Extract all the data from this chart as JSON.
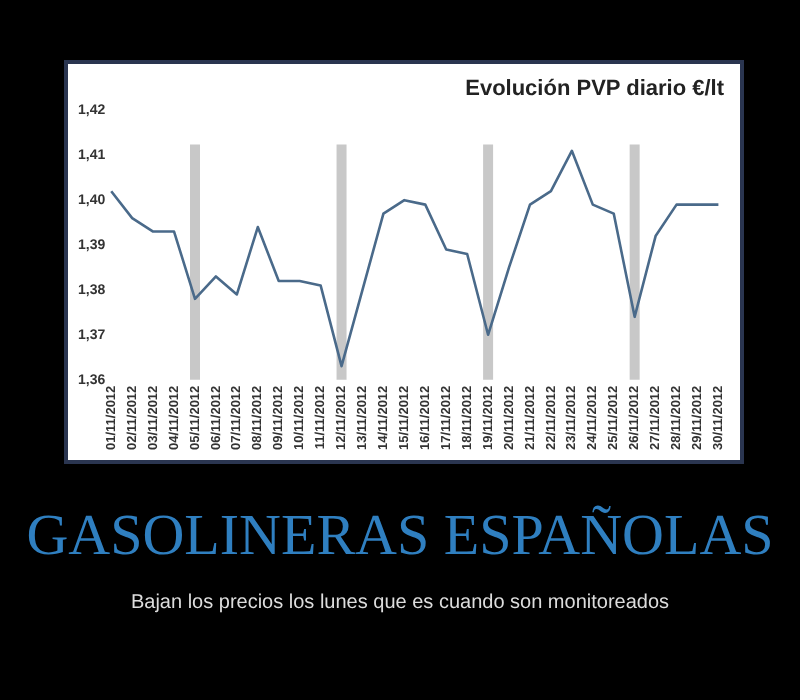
{
  "chart_data": {
    "type": "line",
    "title": "Evolución PVP diario €/lt",
    "categories": [
      "01/11/2012",
      "02/11/2012",
      "03/11/2012",
      "04/11/2012",
      "05/11/2012",
      "06/11/2012",
      "07/11/2012",
      "08/11/2012",
      "09/11/2012",
      "10/11/2012",
      "11/11/2012",
      "12/11/2012",
      "13/11/2012",
      "14/11/2012",
      "15/11/2012",
      "16/11/2012",
      "17/11/2012",
      "18/11/2012",
      "19/11/2012",
      "20/11/2012",
      "21/11/2012",
      "22/11/2012",
      "23/11/2012",
      "24/11/2012",
      "25/11/2012",
      "26/11/2012",
      "27/11/2012",
      "28/11/2012",
      "29/11/2012",
      "30/11/2012"
    ],
    "series": [
      {
        "color": "#4a6a8a",
        "values": [
          1.402,
          1.396,
          1.393,
          1.393,
          1.378,
          1.383,
          1.379,
          1.394,
          1.382,
          1.382,
          1.381,
          1.363,
          1.38,
          1.397,
          1.4,
          1.399,
          1.389,
          1.388,
          1.37,
          1.385,
          1.399,
          1.402,
          1.411,
          1.399,
          1.397,
          1.374,
          1.392,
          1.399,
          1.399,
          1.399
        ]
      }
    ],
    "ylim": [
      1.36,
      1.42
    ],
    "yticks": [
      {
        "value": 1.36,
        "label": "1,36"
      },
      {
        "value": 1.37,
        "label": "1,37"
      },
      {
        "value": 1.38,
        "label": "1,38"
      },
      {
        "value": 1.39,
        "label": "1,39"
      },
      {
        "value": 1.4,
        "label": "1,40"
      },
      {
        "value": 1.41,
        "label": "1,41"
      },
      {
        "value": 1.42,
        "label": "1,42"
      }
    ],
    "ref_lines": [
      {
        "axis": "x",
        "value": "05/11/2012",
        "color": "#c8c8c8"
      },
      {
        "axis": "x",
        "value": "12/11/2012",
        "color": "#c8c8c8"
      },
      {
        "axis": "x",
        "value": "19/11/2012",
        "color": "#c8c8c8"
      },
      {
        "axis": "x",
        "value": "26/11/2012",
        "color": "#c8c8c8"
      }
    ],
    "grid": false,
    "legend": false,
    "marker": "none",
    "line_style": "solid",
    "annotations": [
      "GASOLINERAS ESPAÑOLAS",
      "Bajan los precios los lunes que es cuando son monitoreados"
    ]
  }
}
